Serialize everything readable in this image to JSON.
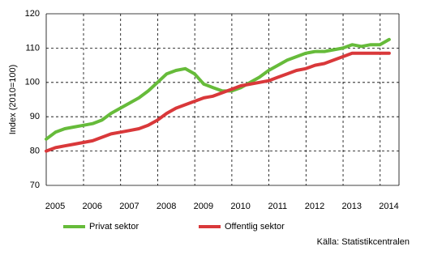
{
  "chart_data": {
    "type": "line",
    "y_label": "Index (2010=100)",
    "source": "Källa: Statistikcentralen",
    "categories": [
      "2005",
      null,
      null,
      null,
      "2006",
      null,
      null,
      null,
      "2007",
      null,
      null,
      null,
      "2008",
      null,
      null,
      null,
      "2009",
      null,
      null,
      null,
      "2010",
      null,
      null,
      null,
      "2011",
      null,
      null,
      null,
      "2012",
      null,
      null,
      null,
      "2013",
      null,
      null,
      null,
      "2014",
      null
    ],
    "series": [
      {
        "name": "Privat sektor",
        "color": "#66bb3a",
        "values": [
          83.5,
          85.5,
          86.5,
          87,
          87.5,
          88,
          89,
          91,
          92.5,
          94,
          95.5,
          97.5,
          100,
          102.5,
          103.5,
          104,
          102.5,
          99.5,
          98.5,
          97.5,
          97.5,
          98.5,
          100,
          101.5,
          103.5,
          105,
          106.5,
          107.5,
          108.5,
          109,
          109,
          109.5,
          110,
          111,
          110.5,
          111,
          111,
          112.5
        ]
      },
      {
        "name": "Offentlig sektor",
        "color": "#d9383a",
        "values": [
          80,
          81,
          81.5,
          82,
          82.5,
          83,
          84,
          85,
          85.5,
          86,
          86.5,
          87.5,
          89,
          91,
          92.5,
          93.5,
          94.5,
          95.5,
          96,
          97,
          98,
          99,
          99.5,
          100,
          100.5,
          101.5,
          102.5,
          103.5,
          104,
          105,
          105.5,
          106.5,
          107.5,
          108.5,
          108.5,
          108.5,
          108.5,
          108.5
        ]
      }
    ],
    "ylim": [
      70,
      120
    ],
    "yticks": [
      70,
      80,
      90,
      100,
      110,
      120
    ],
    "grid": true
  }
}
